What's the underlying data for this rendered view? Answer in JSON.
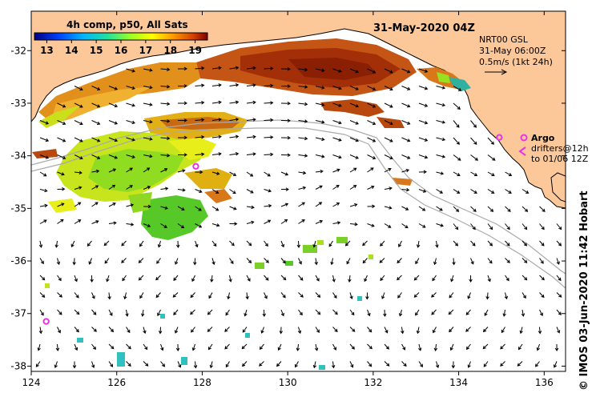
{
  "title": "31-May-2020 04Z",
  "colorbar": {
    "title": "4h comp, p50, All Sats",
    "ticks": [
      "13",
      "14",
      "15",
      "16",
      "17",
      "18",
      "19"
    ],
    "min": 12.5,
    "max": 19.5
  },
  "current_info": {
    "line1": "NRT00 GSL",
    "line2": "31-May 06:00Z",
    "line3": "0.5m/s (1kt 24h)"
  },
  "legend": {
    "argo_label": "Argo",
    "drifter_line1": "drifters@12h",
    "drifter_line2": "to 01/06 12Z"
  },
  "axes": {
    "lon_ticks": [
      "124",
      "126",
      "128",
      "130",
      "132",
      "134",
      "136"
    ],
    "lat_ticks": [
      "-32",
      "-33",
      "-34",
      "-35",
      "-36",
      "-37",
      "-38"
    ],
    "lon_range": [
      124,
      136.5
    ],
    "lat_range": [
      -31.25,
      -38.1
    ]
  },
  "credit": "© IMOS 03-Jun-2020 11:42 Hobart",
  "colors": {
    "land": "#fcc89a",
    "ocean": "#ffffff",
    "argo": "#e633e6",
    "bathymetry": "#aaaaaa"
  },
  "argo_floats": [
    {
      "lon": 134.95,
      "lat": -33.65
    },
    {
      "lon": 124.35,
      "lat": -37.15
    },
    {
      "lon": 127.85,
      "lat": -34.2
    }
  ]
}
